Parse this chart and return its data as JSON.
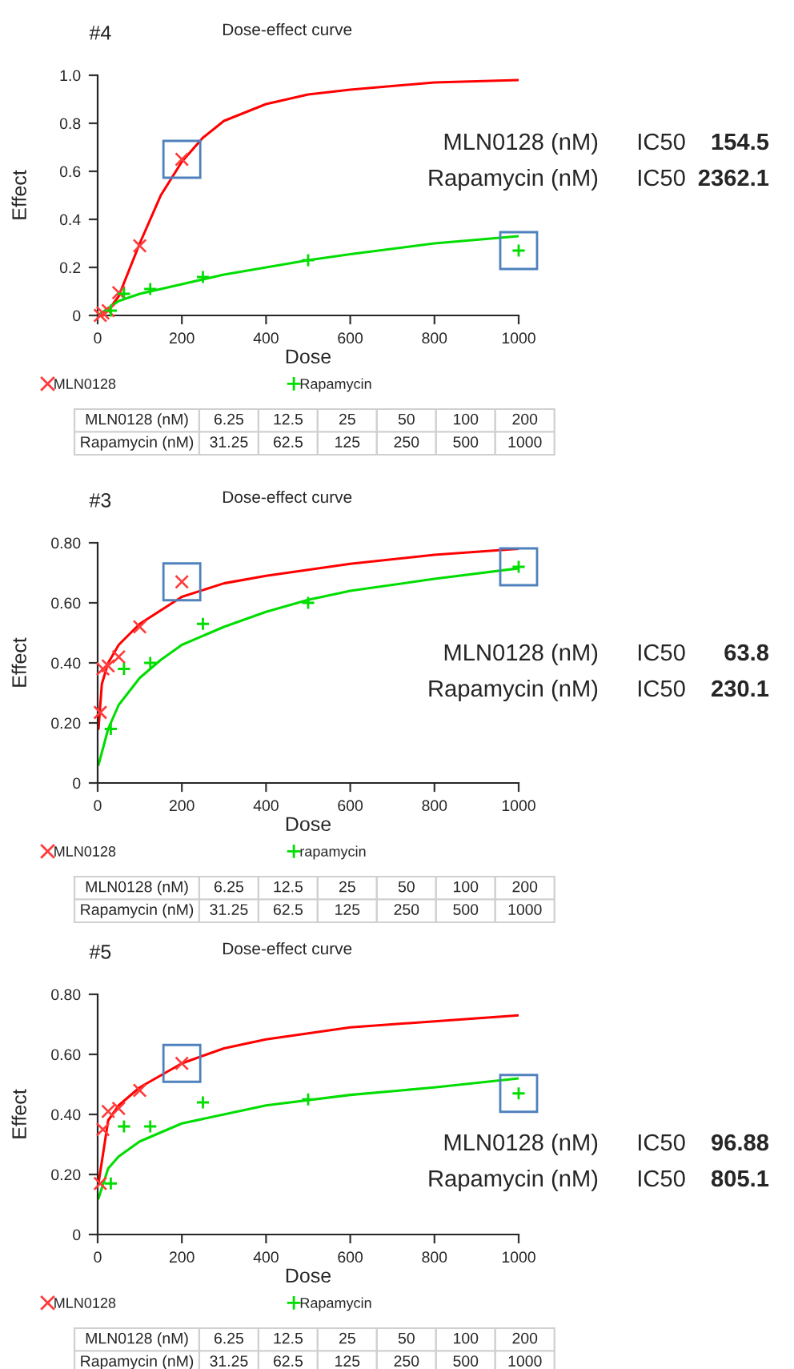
{
  "chart_data": [
    {
      "type": "scatter",
      "title": "Dose-effect curve",
      "subtitle": "#4",
      "xlabel": "Dose",
      "ylabel": "Effect",
      "xlim": [
        0,
        1000
      ],
      "xticks": [
        0,
        200,
        400,
        600,
        800,
        1000
      ],
      "ylim": [
        0,
        1.0
      ],
      "yticks": [
        0,
        0.2,
        0.4,
        0.6,
        0.8,
        {
          "value": 1.0,
          "label": "1.0"
        }
      ],
      "grid": false,
      "legend": "bottom",
      "series": [
        {
          "name": "MLN0128",
          "marker": "cross",
          "color": "#ff3b3b",
          "x": [
            6.25,
            12.5,
            25,
            50,
            100,
            200
          ],
          "values": [
            0.0,
            0.01,
            0.02,
            0.095,
            0.29,
            0.65
          ]
        },
        {
          "name": "Rapamycin",
          "marker": "plus",
          "color": "#00dd00",
          "x": [
            31.25,
            62.5,
            125,
            250,
            500,
            1000
          ],
          "values": [
            0.02,
            0.09,
            0.11,
            0.16,
            0.23,
            0.27
          ]
        },
        {
          "type": "line",
          "marker": "none",
          "color": "#ff0000",
          "x": [
            0,
            25,
            50,
            100,
            150,
            200,
            250,
            300,
            400,
            500,
            600,
            800,
            1000
          ],
          "values": [
            0,
            0.02,
            0.08,
            0.3,
            0.5,
            0.64,
            0.74,
            0.81,
            0.88,
            0.92,
            0.94,
            0.97,
            0.98
          ]
        },
        {
          "type": "line",
          "marker": "none",
          "color": "#00dd00",
          "x": [
            0,
            50,
            100,
            200,
            300,
            400,
            500,
            600,
            800,
            1000
          ],
          "values": [
            0,
            0.06,
            0.09,
            0.13,
            0.17,
            0.2,
            0.23,
            0.255,
            0.3,
            0.33
          ]
        }
      ],
      "annotations": [
        "MLN0128 (nM)",
        "IC50",
        "154.5",
        "Rapamycin (nM)",
        "IC50",
        "2362.1",
        "MLN0128 (nM)",
        "6.25",
        "12.5",
        "25",
        "50",
        "100",
        "200",
        "Rapamycin (nM)",
        "31.25",
        "62.5",
        "125",
        "250",
        "500",
        "1000"
      ]
    },
    {
      "type": "scatter",
      "title": "Dose-effect curve",
      "subtitle": "#3",
      "xlabel": "Dose",
      "ylabel": "Effect",
      "xlim": [
        0,
        1000
      ],
      "xticks": [
        0,
        200,
        400,
        600,
        800,
        1000
      ],
      "ylim": [
        0,
        0.8
      ],
      "yticks": [
        0,
        {
          "value": 0.2,
          "label": "0.20"
        },
        {
          "value": 0.4,
          "label": "0.40"
        },
        {
          "value": 0.6,
          "label": "0.60"
        },
        {
          "value": 0.8,
          "label": "0.80"
        }
      ],
      "grid": false,
      "legend": "bottom",
      "series": [
        {
          "name": "MLN0128",
          "marker": "cross",
          "color": "#ff3b3b",
          "x": [
            6.25,
            12.5,
            25,
            50,
            100,
            200
          ],
          "values": [
            0.235,
            0.38,
            0.39,
            0.42,
            0.52,
            0.67
          ]
        },
        {
          "name": "rapamycin",
          "marker": "plus",
          "color": "#00dd00",
          "x": [
            31.25,
            62.5,
            125,
            250,
            500,
            1000
          ],
          "values": [
            0.18,
            0.38,
            0.4,
            0.53,
            0.6,
            0.72
          ]
        },
        {
          "type": "line",
          "marker": "none",
          "color": "#ff0000",
          "x": [
            2,
            10,
            25,
            50,
            100,
            200,
            300,
            400,
            600,
            800,
            1000
          ],
          "values": [
            0.18,
            0.33,
            0.4,
            0.46,
            0.53,
            0.62,
            0.665,
            0.69,
            0.73,
            0.76,
            0.78
          ]
        },
        {
          "type": "line",
          "marker": "none",
          "color": "#00dd00",
          "x": [
            2,
            25,
            50,
            100,
            150,
            200,
            300,
            400,
            500,
            600,
            800,
            1000
          ],
          "values": [
            0.06,
            0.18,
            0.26,
            0.35,
            0.41,
            0.46,
            0.52,
            0.57,
            0.61,
            0.64,
            0.68,
            0.715
          ]
        }
      ],
      "annotations": [
        "MLN0128 (nM)",
        "IC50",
        "63.8",
        "Rapamycin (nM)",
        "IC50",
        "230.1",
        "MLN0128 (nM)",
        "6.25",
        "12.5",
        "25",
        "50",
        "100",
        "200",
        "Rapamycin (nM)",
        "31.25",
        "62.5",
        "125",
        "250",
        "500",
        "1000"
      ]
    },
    {
      "type": "scatter",
      "title": "Dose-effect curve",
      "subtitle": "#5",
      "xlabel": "Dose",
      "ylabel": "Effect",
      "xlim": [
        0,
        1000
      ],
      "xticks": [
        0,
        200,
        400,
        600,
        800,
        1000
      ],
      "ylim": [
        0,
        0.8
      ],
      "yticks": [
        0,
        {
          "value": 0.2,
          "label": "0.20"
        },
        {
          "value": 0.4,
          "label": "0.40"
        },
        {
          "value": 0.6,
          "label": "0.60"
        },
        {
          "value": 0.8,
          "label": "0.80"
        }
      ],
      "grid": false,
      "legend": "bottom",
      "series": [
        {
          "name": "MLN0128",
          "marker": "cross",
          "color": "#ff3b3b",
          "x": [
            6.25,
            12.5,
            25,
            50,
            100,
            200
          ],
          "values": [
            0.17,
            0.35,
            0.41,
            0.42,
            0.48,
            0.57
          ]
        },
        {
          "name": "Rapamycin",
          "marker": "plus",
          "color": "#00dd00",
          "x": [
            31.25,
            62.5,
            125,
            250,
            500,
            1000
          ],
          "values": [
            0.17,
            0.36,
            0.36,
            0.44,
            0.45,
            0.47
          ]
        },
        {
          "type": "line",
          "marker": "none",
          "color": "#ff0000",
          "x": [
            2,
            25,
            50,
            100,
            200,
            300,
            400,
            600,
            800,
            1000
          ],
          "values": [
            0.17,
            0.38,
            0.43,
            0.49,
            0.57,
            0.62,
            0.65,
            0.69,
            0.71,
            0.73
          ]
        },
        {
          "type": "line",
          "marker": "none",
          "color": "#00dd00",
          "x": [
            2,
            25,
            50,
            100,
            200,
            300,
            400,
            600,
            800,
            1000
          ],
          "values": [
            0.12,
            0.22,
            0.26,
            0.31,
            0.37,
            0.4,
            0.43,
            0.465,
            0.49,
            0.52
          ]
        }
      ],
      "annotations": [
        "MLN0128 (nM)",
        "IC50",
        "96.88",
        "Rapamycin (nM)",
        "IC50",
        "805.1",
        "MLN0128 (nM)",
        "6.25",
        "12.5",
        "25",
        "50",
        "100",
        "200",
        "Rapamycin (nM)",
        "31.25",
        "62.5",
        "125",
        "250",
        "500",
        "1000"
      ]
    }
  ]
}
